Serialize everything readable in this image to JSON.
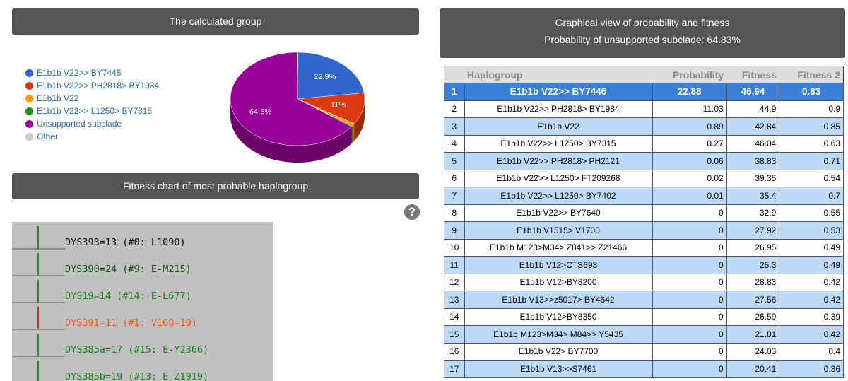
{
  "left_header": {
    "title": "The calculated group"
  },
  "chart_data": {
    "type": "pie",
    "categories": [
      "E1b1b V22>> BY7446",
      "E1b1b V22>> PH2818> BY1984",
      "E1b1b V22",
      "E1b1b V22>> L1250> BY7315",
      "Unsupported subclade",
      "Other"
    ],
    "values": [
      22.9,
      11,
      0.9,
      0.3,
      64.8,
      0.1
    ],
    "value_labels": [
      "22.9%",
      "11%",
      null,
      null,
      "64.8%",
      null
    ],
    "colors": [
      "#3366cc",
      "#dc3912",
      "#ff9900",
      "#109618",
      "#990099",
      "#cccccc"
    ],
    "legend": "left"
  },
  "fitness_header": {
    "title": "Fitness chart of most probable haplogroup"
  },
  "help_icon": "?",
  "fitness_entries": [
    {
      "text": "DYS393=13 (#0: L1090)",
      "color": "#111111"
    },
    {
      "text": "DYS390=24 (#9: E-M215)",
      "color": "#0f4f0f"
    },
    {
      "text": "DYS19=14 (#14: E-L677)",
      "color": "#1c7c1c"
    },
    {
      "text": "DYS391=11 (#1: V168=10)",
      "color": "#e8561e"
    },
    {
      "text": "DYS385a=17 (#15: E-Y2366)",
      "color": "#1c7c1c"
    },
    {
      "text": "DYS385b=19 (#13: E-Z1919)",
      "color": "#1c7c1c"
    }
  ],
  "right_header": {
    "title": "Graphical view of probability and fitness",
    "subtitle": "Probability of unsupported subclade: 64.83%"
  },
  "table": {
    "header": [
      "Haplogroup",
      "Probability",
      "Fitness",
      "Fitness 2"
    ],
    "rows": [
      [
        1,
        "E1b1b V22>> BY7446",
        22.88,
        46.94,
        0.83
      ],
      [
        2,
        "E1b1b V22>> PH2818> BY1984",
        11.03,
        44.9,
        0.9
      ],
      [
        3,
        "E1b1b V22",
        0.89,
        42.84,
        0.85
      ],
      [
        4,
        "E1b1b V22>> L1250> BY7315",
        0.27,
        46.04,
        0.63
      ],
      [
        5,
        "E1b1b V22>> PH2818> PH2121",
        0.06,
        38.83,
        0.71
      ],
      [
        6,
        "E1b1b V22>> L1250> FT209268",
        0.02,
        39.35,
        0.54
      ],
      [
        7,
        "E1b1b V22>> L1250> BY7402",
        0.01,
        35.4,
        0.7
      ],
      [
        8,
        "E1b1b V22>> BY7640",
        0,
        32.9,
        0.55
      ],
      [
        9,
        "E1b1b V1515> V1700",
        0,
        27.92,
        0.53
      ],
      [
        10,
        "E1b1b M123>M34> Z841>> Z21466",
        0,
        26.95,
        0.49
      ],
      [
        11,
        "E1b1b V12>CTS693",
        0,
        25.3,
        0.49
      ],
      [
        12,
        "E1b1b V12>BY8200",
        0,
        28.83,
        0.42
      ],
      [
        13,
        "E1b1b V13>>z5017> BY4642",
        0,
        27.56,
        0.42
      ],
      [
        14,
        "E1b1b V12>BY8350",
        0,
        26.59,
        0.39
      ],
      [
        15,
        "E1b1b M123>M34> M84>> Y5435",
        0,
        21.81,
        0.42
      ],
      [
        16,
        "E1b1b V22> BY7700",
        0,
        24.03,
        0.4
      ],
      [
        17,
        "E1b1b V13>>S7461",
        0,
        20.41,
        0.36
      ]
    ]
  }
}
